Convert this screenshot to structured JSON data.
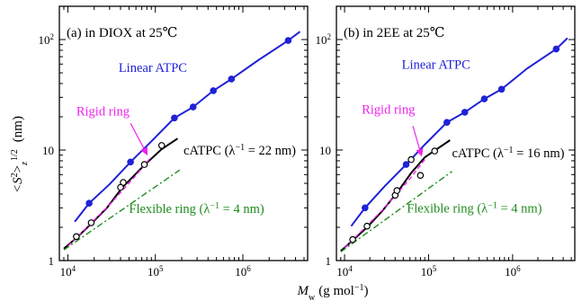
{
  "figure": {
    "ylabel_main": "<S",
    "ylabel_sup": "2",
    "ylabel_after": ">",
    "ylabel_sub": "z",
    "ylabel_power": "1/2",
    "ylabel_unit": "(nm)",
    "xlabel_main": "M",
    "xlabel_sub": "w",
    "xlabel_unit": "(g mol",
    "xlabel_power": "−1",
    "xlabel_close": ")"
  },
  "chart_data": [
    {
      "type": "scatter",
      "title": "(a) in DIOX at 25℃",
      "xscale": "log",
      "yscale": "log",
      "xlim": [
        8000,
        5500000
      ],
      "ylim": [
        1,
        200
      ],
      "xticks": [
        {
          "value": 10000,
          "base": "10",
          "exp": "4"
        },
        {
          "value": 100000,
          "base": "10",
          "exp": "5"
        },
        {
          "value": 1000000,
          "base": "10",
          "exp": "6"
        }
      ],
      "yticks": [
        {
          "value": 1,
          "label": "1"
        },
        {
          "value": 10,
          "label": "10"
        },
        {
          "value": 100,
          "label": "10",
          "exp": "2"
        }
      ],
      "series": [
        {
          "name": "Linear ATPC",
          "color": "#1f22d6",
          "marker": "filled",
          "style": "solid",
          "points": [
            [
              17500,
              3.3
            ],
            [
              52000,
              7.8
            ],
            [
              165000,
              19.5
            ],
            [
              270000,
              24.5
            ],
            [
              460000,
              34.5
            ],
            [
              740000,
              44
            ],
            [
              3300000,
              98
            ]
          ],
          "curve": [
            [
              12000,
              2.25
            ],
            [
              17500,
              3.3
            ],
            [
              30000,
              4.9
            ],
            [
              52000,
              7.8
            ],
            [
              90000,
              12.0
            ],
            [
              165000,
              19.5
            ],
            [
              270000,
              24.5
            ],
            [
              460000,
              34.5
            ],
            [
              740000,
              44
            ],
            [
              1500000,
              65
            ],
            [
              3300000,
              98
            ],
            [
              4500000,
              118
            ]
          ]
        },
        {
          "name": "cATPC",
          "color": "#000000",
          "marker": "open",
          "style": "solid",
          "points": [
            [
              12500,
              1.65
            ],
            [
              18500,
              2.2
            ],
            [
              40000,
              4.6
            ],
            [
              43000,
              5.1
            ],
            [
              75000,
              7.4
            ],
            [
              118000,
              11
            ]
          ],
          "curve": [
            [
              9000,
              1.28
            ],
            [
              12500,
              1.6
            ],
            [
              18500,
              2.15
            ],
            [
              28000,
              3.0
            ],
            [
              42000,
              4.6
            ],
            [
              75000,
              7.3
            ],
            [
              118000,
              10.2
            ],
            [
              180000,
              12.7
            ]
          ]
        },
        {
          "name": "Rigid ring",
          "color": "#ee22ee",
          "marker": "none",
          "style": "dashed",
          "curve": [
            [
              10000,
              1.35
            ],
            [
              30000,
              3.2
            ],
            [
              60000,
              5.9
            ],
            [
              90000,
              8.7
            ]
          ]
        },
        {
          "name": "Flexible ring",
          "color": "#1f8c1f",
          "marker": "none",
          "style": "dashdot",
          "curve": [
            [
              9000,
              1.25
            ],
            [
              190000,
              6.6
            ]
          ]
        }
      ],
      "annotations": [
        {
          "text": "Linear ATPC",
          "color": "#1f22d6",
          "at": [
            38000,
            56
          ]
        },
        {
          "text": "Rigid ring",
          "color": "#ee22ee",
          "at": [
            12500,
            22.5
          ]
        },
        {
          "text": "cATPC (λ",
          "sup": "−1",
          "after": " = 22 nm)",
          "color": "#000000",
          "at": [
            210000,
            10
          ]
        },
        {
          "text": "Flexible ring (λ",
          "sup": "−1",
          "after": " = 4 nm)",
          "color": "#1f8c1f",
          "at": [
            50000,
            2.95
          ]
        }
      ],
      "arrow": {
        "color": "#ee22ee",
        "from": [
          52000,
          17.5
        ],
        "to": [
          80000,
          9.2
        ]
      }
    },
    {
      "type": "scatter",
      "title": "(b) in 2EE at 25℃",
      "xscale": "log",
      "yscale": "log",
      "xlim": [
        8000,
        5500000
      ],
      "ylim": [
        1,
        200
      ],
      "xticks": [
        {
          "value": 10000,
          "base": "10",
          "exp": "4"
        },
        {
          "value": 100000,
          "base": "10",
          "exp": "5"
        },
        {
          "value": 1000000,
          "base": "10",
          "exp": "6"
        }
      ],
      "yticks": [
        {
          "value": 1,
          "label": "1"
        },
        {
          "value": 10,
          "label": "10"
        },
        {
          "value": 100,
          "label": "10",
          "exp": "2"
        }
      ],
      "series": [
        {
          "name": "Linear ATPC",
          "color": "#1f22d6",
          "marker": "filled",
          "style": "solid",
          "points": [
            [
              17500,
              3.0
            ],
            [
              54000,
              7.4
            ],
            [
              165000,
              17.8
            ],
            [
              270000,
              22
            ],
            [
              460000,
              29
            ],
            [
              740000,
              35.5
            ],
            [
              3300000,
              82
            ]
          ],
          "curve": [
            [
              12000,
              2.05
            ],
            [
              17500,
              3.0
            ],
            [
              30000,
              4.7
            ],
            [
              54000,
              7.4
            ],
            [
              90000,
              11.2
            ],
            [
              165000,
              17.8
            ],
            [
              270000,
              22
            ],
            [
              460000,
              29
            ],
            [
              740000,
              35.5
            ],
            [
              1500000,
              55
            ],
            [
              3300000,
              82
            ],
            [
              4500000,
              103
            ]
          ]
        },
        {
          "name": "cATPC",
          "color": "#000000",
          "marker": "open",
          "style": "solid",
          "points": [
            [
              12500,
              1.55
            ],
            [
              18500,
              2.05
            ],
            [
              40000,
              3.9
            ],
            [
              42000,
              4.3
            ],
            [
              62000,
              8.2
            ],
            [
              80000,
              5.9
            ],
            [
              118000,
              9.8
            ]
          ],
          "curve": [
            [
              9000,
              1.22
            ],
            [
              12500,
              1.52
            ],
            [
              18500,
              2.0
            ],
            [
              28000,
              2.8
            ],
            [
              42000,
              4.1
            ],
            [
              62000,
              6.2
            ],
            [
              90000,
              8.6
            ],
            [
              180000,
              12.3
            ]
          ]
        },
        {
          "name": "Rigid ring",
          "color": "#ee22ee",
          "marker": "none",
          "style": "dashed",
          "curve": [
            [
              10000,
              1.3
            ],
            [
              30000,
              3.0
            ],
            [
              60000,
              5.5
            ],
            [
              90000,
              8.2
            ]
          ]
        },
        {
          "name": "Flexible ring",
          "color": "#1f8c1f",
          "marker": "none",
          "style": "dashdot",
          "curve": [
            [
              9000,
              1.2
            ],
            [
              190000,
              6.4
            ]
          ]
        }
      ],
      "annotations": [
        {
          "text": "Linear ATPC",
          "color": "#1f22d6",
          "at": [
            48000,
            60
          ]
        },
        {
          "text": "Rigid ring",
          "color": "#ee22ee",
          "at": [
            16000,
            23.5
          ]
        },
        {
          "text": "cATPC (λ",
          "sup": "−1",
          "after": " = 16 nm)",
          "color": "#000000",
          "at": [
            190000,
            9.5
          ]
        },
        {
          "text": "Flexible ring (λ",
          "sup": "−1",
          "after": " = 4 nm)",
          "color": "#1f8c1f",
          "at": [
            55000,
            3.0
          ]
        }
      ],
      "arrow": {
        "color": "#ee22ee",
        "from": [
          65000,
          16.5
        ],
        "to": [
          82000,
          9.0
        ]
      }
    }
  ]
}
